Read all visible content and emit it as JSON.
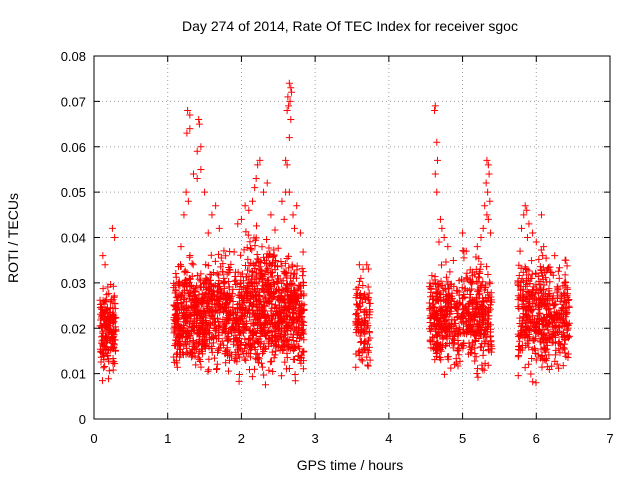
{
  "chart_data": {
    "type": "scatter",
    "title": "Day 274 of 2014, Rate Of TEC Index for receiver sgoc",
    "xlabel": "GPS time / hours",
    "ylabel": "ROTI / TECUs",
    "xlim": [
      0,
      7
    ],
    "ylim": [
      0,
      0.08
    ],
    "xticks": [
      "0",
      "1",
      "2",
      "3",
      "4",
      "5",
      "6",
      "7"
    ],
    "yticks": [
      "0",
      "0.01",
      "0.02",
      "0.03",
      "0.04",
      "0.05",
      "0.06",
      "0.07",
      "0.08"
    ],
    "grid": true,
    "marker": "+",
    "color": "#ff0000",
    "series": [
      {
        "name": "ROTI",
        "clusters": [
          {
            "x_range": [
              0.08,
              0.3
            ],
            "y_range": [
              0.006,
              0.03
            ],
            "count": 180
          },
          {
            "x_range": [
              1.08,
              1.5
            ],
            "y_range": [
              0.007,
              0.034
            ],
            "count": 380
          },
          {
            "x_range": [
              1.5,
              2.05
            ],
            "y_range": [
              0.006,
              0.036
            ],
            "count": 420
          },
          {
            "x_range": [
              2.05,
              2.5
            ],
            "y_range": [
              0.005,
              0.04
            ],
            "count": 420
          },
          {
            "x_range": [
              2.5,
              2.85
            ],
            "y_range": [
              0.006,
              0.036
            ],
            "count": 320
          },
          {
            "x_range": [
              3.55,
              3.75
            ],
            "y_range": [
              0.006,
              0.032
            ],
            "count": 110
          },
          {
            "x_range": [
              4.55,
              5.0
            ],
            "y_range": [
              0.007,
              0.033
            ],
            "count": 320
          },
          {
            "x_range": [
              5.0,
              5.4
            ],
            "y_range": [
              0.007,
              0.035
            ],
            "count": 280
          },
          {
            "x_range": [
              5.75,
              6.1
            ],
            "y_range": [
              0.007,
              0.035
            ],
            "count": 260
          },
          {
            "x_range": [
              6.1,
              6.45
            ],
            "y_range": [
              0.006,
              0.034
            ],
            "count": 240
          }
        ],
        "outliers": [
          {
            "x": 0.12,
            "y": 0.036
          },
          {
            "x": 0.25,
            "y": 0.042
          },
          {
            "x": 0.28,
            "y": 0.04
          },
          {
            "x": 0.15,
            "y": 0.034
          },
          {
            "x": 1.27,
            "y": 0.068
          },
          {
            "x": 1.3,
            "y": 0.067
          },
          {
            "x": 1.26,
            "y": 0.063
          },
          {
            "x": 1.3,
            "y": 0.064
          },
          {
            "x": 1.42,
            "y": 0.066
          },
          {
            "x": 1.43,
            "y": 0.065
          },
          {
            "x": 1.45,
            "y": 0.06
          },
          {
            "x": 1.4,
            "y": 0.059
          },
          {
            "x": 1.45,
            "y": 0.055
          },
          {
            "x": 1.4,
            "y": 0.053
          },
          {
            "x": 1.35,
            "y": 0.054
          },
          {
            "x": 1.25,
            "y": 0.05
          },
          {
            "x": 1.22,
            "y": 0.045
          },
          {
            "x": 1.28,
            "y": 0.048
          },
          {
            "x": 1.5,
            "y": 0.05
          },
          {
            "x": 1.6,
            "y": 0.045
          },
          {
            "x": 1.65,
            "y": 0.047
          },
          {
            "x": 1.7,
            "y": 0.042
          },
          {
            "x": 1.55,
            "y": 0.041
          },
          {
            "x": 1.18,
            "y": 0.038
          },
          {
            "x": 2.25,
            "y": 0.057
          },
          {
            "x": 2.22,
            "y": 0.056
          },
          {
            "x": 2.2,
            "y": 0.053
          },
          {
            "x": 2.18,
            "y": 0.051
          },
          {
            "x": 2.3,
            "y": 0.05
          },
          {
            "x": 2.15,
            "y": 0.048
          },
          {
            "x": 2.1,
            "y": 0.046
          },
          {
            "x": 2.05,
            "y": 0.047
          },
          {
            "x": 2.35,
            "y": 0.052
          },
          {
            "x": 2.0,
            "y": 0.044
          },
          {
            "x": 2.4,
            "y": 0.045
          },
          {
            "x": 1.95,
            "y": 0.043
          },
          {
            "x": 2.65,
            "y": 0.074
          },
          {
            "x": 2.67,
            "y": 0.073
          },
          {
            "x": 2.63,
            "y": 0.071
          },
          {
            "x": 2.66,
            "y": 0.07
          },
          {
            "x": 2.64,
            "y": 0.069
          },
          {
            "x": 2.68,
            "y": 0.072
          },
          {
            "x": 2.62,
            "y": 0.068
          },
          {
            "x": 2.67,
            "y": 0.066
          },
          {
            "x": 2.65,
            "y": 0.062
          },
          {
            "x": 2.6,
            "y": 0.057
          },
          {
            "x": 2.62,
            "y": 0.056
          },
          {
            "x": 2.65,
            "y": 0.05
          },
          {
            "x": 2.6,
            "y": 0.05
          },
          {
            "x": 2.55,
            "y": 0.048
          },
          {
            "x": 2.75,
            "y": 0.047
          },
          {
            "x": 2.7,
            "y": 0.045
          },
          {
            "x": 2.58,
            "y": 0.044
          },
          {
            "x": 2.72,
            "y": 0.042
          },
          {
            "x": 2.8,
            "y": 0.041
          },
          {
            "x": 3.6,
            "y": 0.034
          },
          {
            "x": 3.65,
            "y": 0.033
          },
          {
            "x": 3.7,
            "y": 0.034
          },
          {
            "x": 3.62,
            "y": 0.031
          },
          {
            "x": 4.63,
            "y": 0.069
          },
          {
            "x": 4.62,
            "y": 0.068
          },
          {
            "x": 4.65,
            "y": 0.061
          },
          {
            "x": 4.66,
            "y": 0.057
          },
          {
            "x": 4.63,
            "y": 0.054
          },
          {
            "x": 4.65,
            "y": 0.05
          },
          {
            "x": 4.7,
            "y": 0.044
          },
          {
            "x": 4.72,
            "y": 0.042
          },
          {
            "x": 4.75,
            "y": 0.04
          },
          {
            "x": 4.68,
            "y": 0.039
          },
          {
            "x": 4.8,
            "y": 0.038
          },
          {
            "x": 5.33,
            "y": 0.057
          },
          {
            "x": 5.35,
            "y": 0.056
          },
          {
            "x": 5.36,
            "y": 0.054
          },
          {
            "x": 5.32,
            "y": 0.052
          },
          {
            "x": 5.34,
            "y": 0.05
          },
          {
            "x": 5.37,
            "y": 0.048
          },
          {
            "x": 5.3,
            "y": 0.047
          },
          {
            "x": 5.33,
            "y": 0.045
          },
          {
            "x": 5.35,
            "y": 0.044
          },
          {
            "x": 5.28,
            "y": 0.042
          },
          {
            "x": 5.38,
            "y": 0.041
          },
          {
            "x": 5.25,
            "y": 0.04
          },
          {
            "x": 5.2,
            "y": 0.038
          },
          {
            "x": 5.0,
            "y": 0.041
          },
          {
            "x": 5.05,
            "y": 0.037
          },
          {
            "x": 5.85,
            "y": 0.047
          },
          {
            "x": 5.87,
            "y": 0.046
          },
          {
            "x": 5.83,
            "y": 0.045
          },
          {
            "x": 6.07,
            "y": 0.045
          },
          {
            "x": 5.9,
            "y": 0.043
          },
          {
            "x": 5.8,
            "y": 0.042
          },
          {
            "x": 5.95,
            "y": 0.041
          },
          {
            "x": 5.88,
            "y": 0.04
          },
          {
            "x": 6.0,
            "y": 0.039
          },
          {
            "x": 6.1,
            "y": 0.038
          },
          {
            "x": 5.78,
            "y": 0.037
          },
          {
            "x": 6.25,
            "y": 0.036
          }
        ]
      }
    ]
  }
}
